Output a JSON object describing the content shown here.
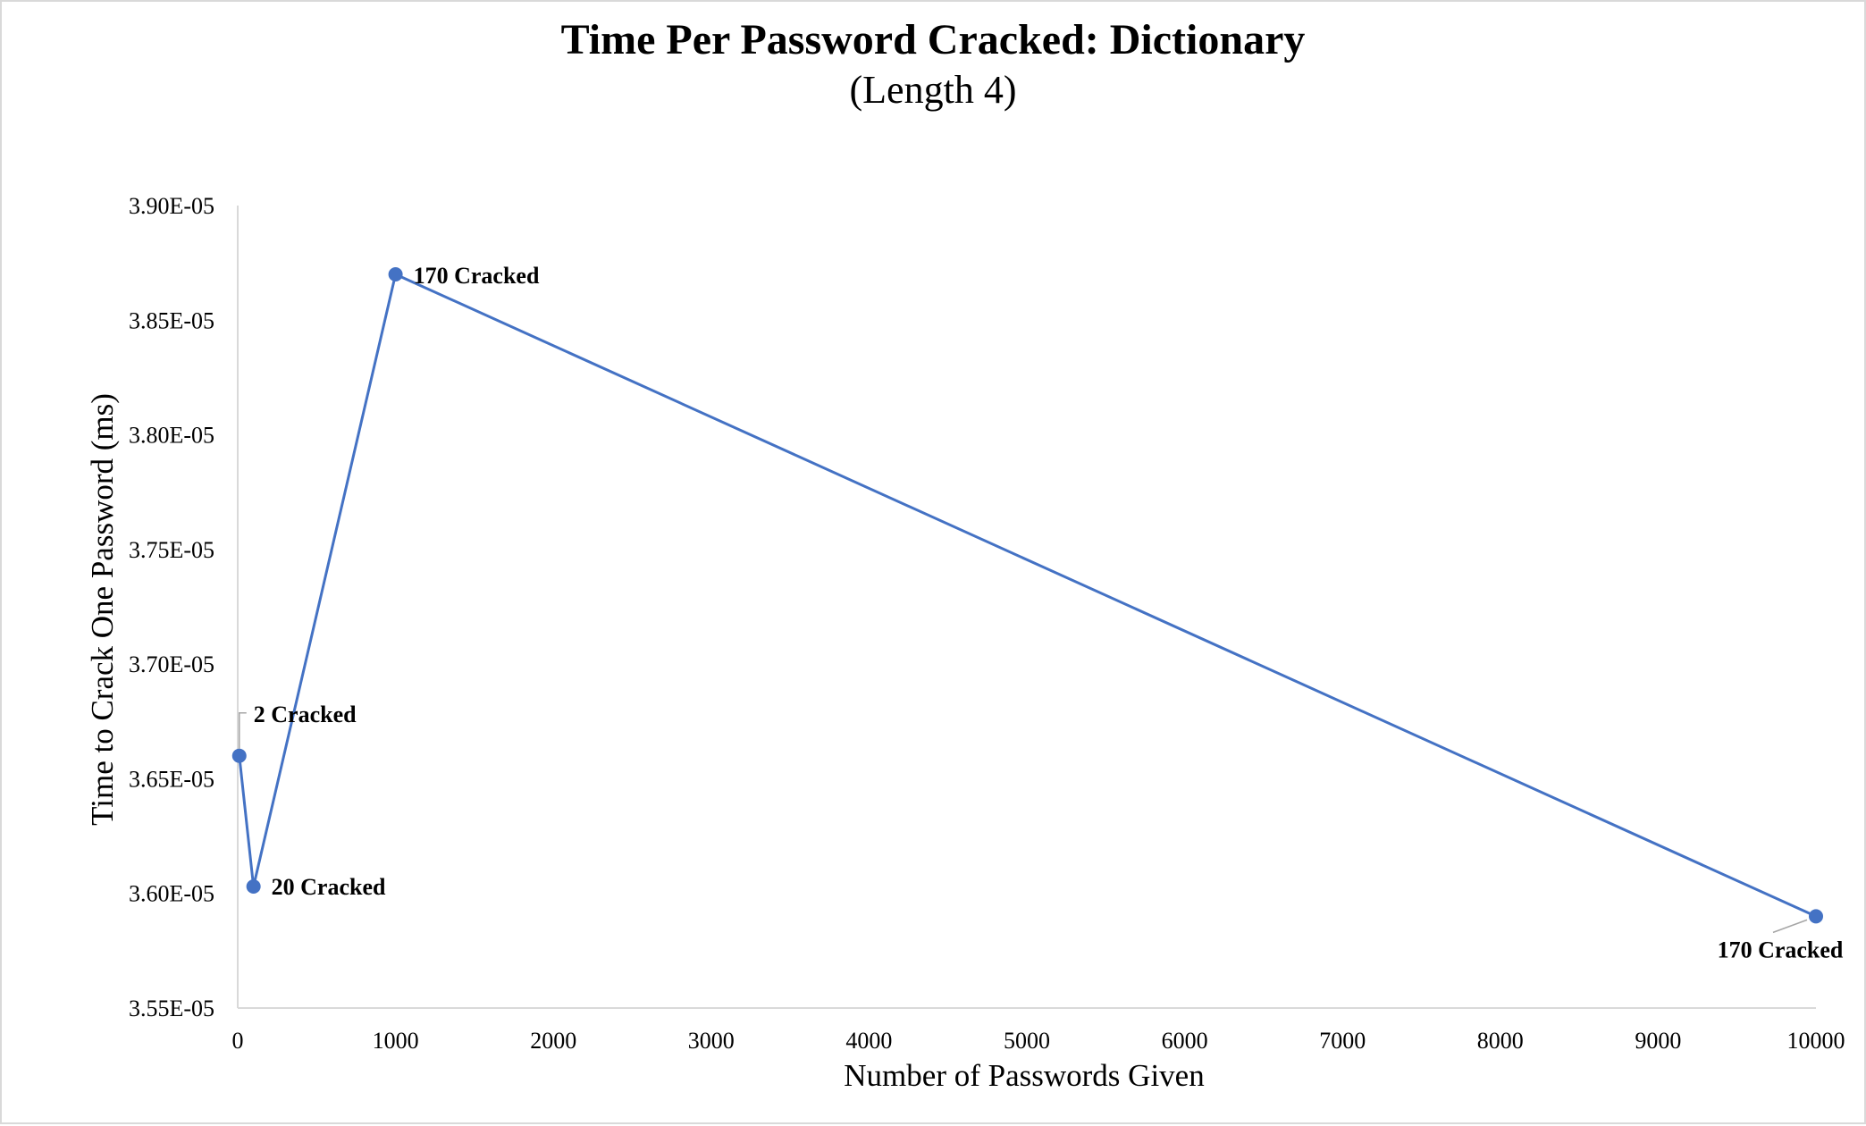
{
  "chart_data": {
    "type": "scatter",
    "title": "Time Per Password Cracked: Dictionary",
    "subtitle": "(Length 4)",
    "xlabel": "Number of Passwords Given",
    "ylabel": "Time to Crack One Password (ms)",
    "xlim": [
      0,
      10000
    ],
    "ylim": [
      3.55e-05,
      3.9e-05
    ],
    "x_ticks": [
      0,
      1000,
      2000,
      3000,
      4000,
      5000,
      6000,
      7000,
      8000,
      9000,
      10000
    ],
    "x_tick_labels": [
      "0",
      "1000",
      "2000",
      "3000",
      "4000",
      "5000",
      "6000",
      "7000",
      "8000",
      "9000",
      "10000"
    ],
    "y_ticks": [
      3.55e-05,
      3.6e-05,
      3.65e-05,
      3.7e-05,
      3.75e-05,
      3.8e-05,
      3.85e-05,
      3.9e-05
    ],
    "y_tick_labels": [
      "3.55E-05",
      "3.60E-05",
      "3.65E-05",
      "3.70E-05",
      "3.75E-05",
      "3.80E-05",
      "3.85E-05",
      "3.90E-05"
    ],
    "grid": false,
    "color": "#4472C4",
    "series": [
      {
        "x": [
          10,
          100,
          1000,
          10000
        ],
        "y": [
          3.66e-05,
          3.603e-05,
          3.87e-05,
          3.59e-05
        ],
        "labels": [
          "2 Cracked",
          "20 Cracked",
          "170 Cracked",
          "170 Cracked"
        ]
      }
    ]
  }
}
